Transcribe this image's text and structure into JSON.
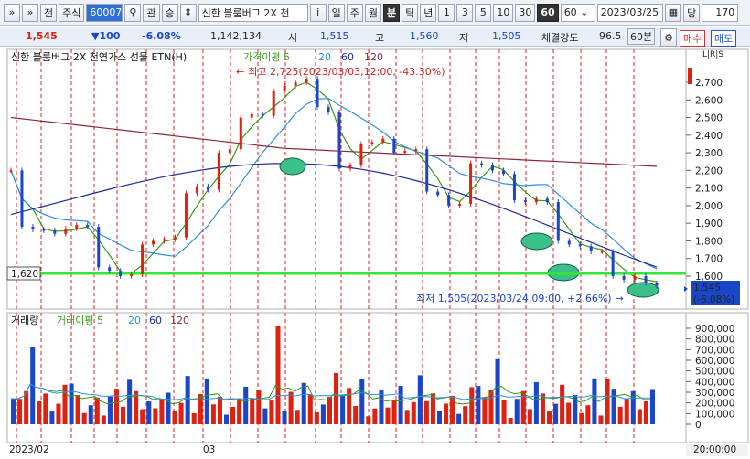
{
  "toolbar": {
    "items": [
      {
        "label": "»",
        "name": "expand-button"
      },
      {
        "label": "»",
        "name": "menu-button"
      },
      {
        "label": "전",
        "name": "prev-button"
      },
      {
        "label": "주식",
        "name": "asset-type-button"
      }
    ],
    "code": "600073",
    "search_icon": "search-icon",
    "gwan": "관",
    "seung": "승",
    "stock_name": "신한 블룸버그 2X 천",
    "periods": [
      "i",
      "일",
      "주",
      "월",
      "분",
      "틱",
      "년",
      "1",
      "3",
      "5",
      "10",
      "30",
      "60"
    ],
    "active_periods": [
      "분",
      "60"
    ],
    "count": "60",
    "date": "2023/03/25",
    "dang": "당",
    "bars": "170"
  },
  "quote": {
    "price": "1,545",
    "change": "▼100",
    "rate": "-6.08%",
    "volume": "1,142,134",
    "open_label": "시",
    "open": "1,515",
    "high_label": "고",
    "high": "1,560",
    "low_label": "저",
    "low": "1,505",
    "strength_label": "체결강도",
    "strength": "96.5",
    "interval": "60분",
    "sell": "매수",
    "buy": "매도"
  },
  "price_panel": {
    "title": "신한 블룸버그 2X 천연가스 선물 ETN(H)",
    "legend": [
      {
        "label": "가격이평 5",
        "color": "#3a9a18"
      },
      {
        "label": "20",
        "color": "#2f8fe0"
      },
      {
        "label": "60",
        "color": "#1c2a9a"
      },
      {
        "label": "120",
        "color": "#8a2a3a"
      }
    ],
    "ticks": [
      "2,700",
      "2,600",
      "2,500",
      "2,400",
      "2,300",
      "2,200",
      "2,100",
      "2,000",
      "1,900",
      "1,800",
      "1,700",
      "1,600"
    ],
    "high_annotation": "최고 2,725(2023/03/03,12:00, -43.30%)",
    "low_annotation": "최저 1,505(2023/03/24,09:00, +2.66%)",
    "support_label": "1,620",
    "current_label_price": "1,545",
    "current_label_rate": "(-6.08%)",
    "corner": "L|R|S"
  },
  "volume_panel": {
    "title": "거래량",
    "legend": [
      {
        "label": "거래이평 5",
        "color": "#3a9a18"
      },
      {
        "label": "20",
        "color": "#2f8fe0"
      },
      {
        "label": "60",
        "color": "#1c2a9a"
      },
      {
        "label": "120",
        "color": "#8a2a3a"
      }
    ],
    "ticks": [
      "900,000",
      "800,000",
      "700,000",
      "600,000",
      "500,000",
      "400,000",
      "300,000",
      "200,000",
      "100,000",
      "0"
    ]
  },
  "x_axis": {
    "labels": [
      "2023/02",
      "03"
    ],
    "time": "20:00:00"
  },
  "chart_data": {
    "type": "candlestick",
    "title": "신한 블룸버그 2X 천연가스 선물 ETN(H)",
    "interval": "60분",
    "price_range": [
      1500,
      2780
    ],
    "support_line": 1620,
    "high": {
      "value": 2725,
      "date": "2023/03/03 12:00"
    },
    "low": {
      "value": 1505,
      "date": "2023/03/24 09:00"
    },
    "close_path": [
      2200,
      1880,
      1865,
      1860,
      1840,
      1870,
      1890,
      1880,
      1650,
      1630,
      1600,
      1610,
      1780,
      1800,
      1810,
      1820,
      2070,
      2110,
      2090,
      2300,
      2320,
      2500,
      2520,
      2510,
      2650,
      2680,
      2700,
      2720,
      2560,
      2530,
      2210,
      2230,
      2350,
      2360,
      2380,
      2300,
      2310,
      2320,
      2080,
      2060,
      2000,
      2010,
      2240,
      2230,
      2200,
      2180,
      2030,
      2020,
      2040,
      2020,
      1800,
      1780,
      1770,
      1740,
      1740,
      1600,
      1580,
      1600,
      1560,
      1545
    ],
    "volume_range": [
      0,
      950000
    ],
    "volume_peaks": [
      {
        "label": "spike-1",
        "value": 720000
      },
      {
        "label": "spike-2",
        "value": 920000
      },
      {
        "label": "spike-3",
        "value": 610000
      }
    ]
  }
}
